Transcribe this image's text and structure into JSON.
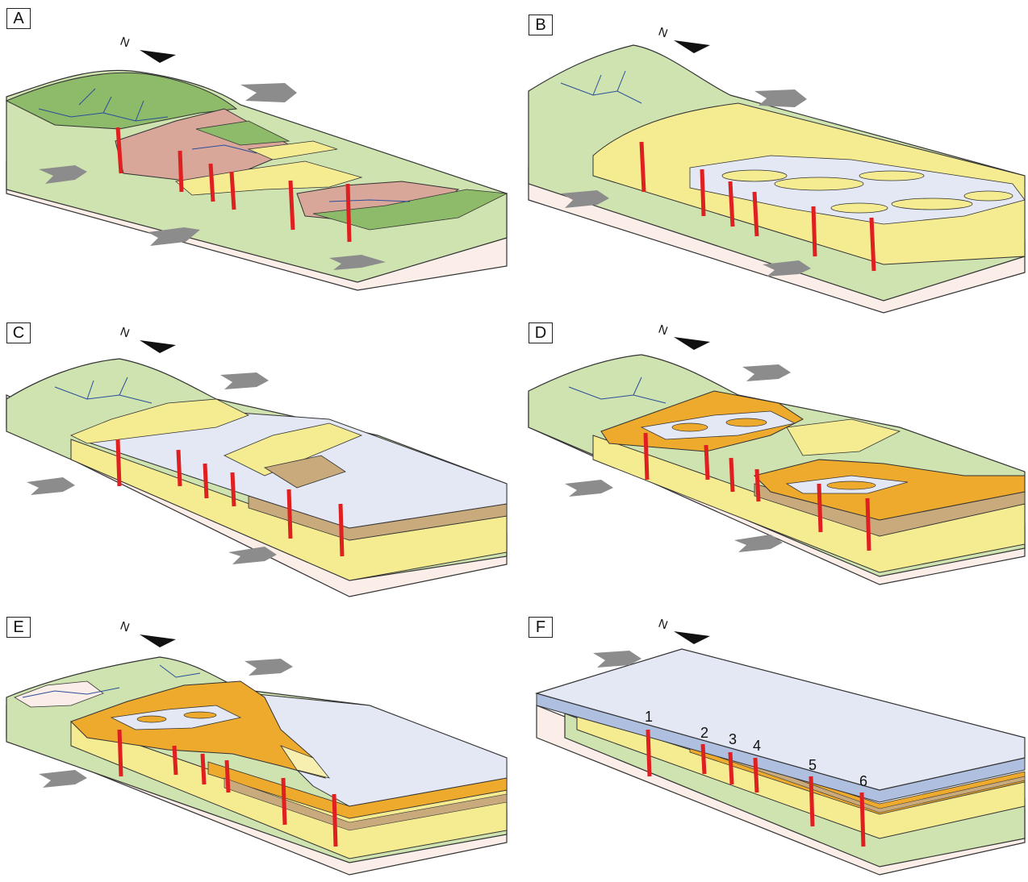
{
  "panels": [
    {
      "label": "A"
    },
    {
      "label": "B"
    },
    {
      "label": "C"
    },
    {
      "label": "D"
    },
    {
      "label": "E"
    },
    {
      "label": "F"
    }
  ],
  "well_labels": [
    "1",
    "2",
    "3",
    "4",
    "5",
    "6"
  ],
  "north_arrow_icon": "north-arrow-icon",
  "colors": {
    "basement_pink": "#fbeee8",
    "hill_green": "#cfe3b0",
    "upland_darkgreen": "#8dbb6a",
    "pink_fan": "#d9a79a",
    "sand_yellow": "#f5ec92",
    "deep_orange": "#eeaa2c",
    "mud_brown": "#c8aa7c",
    "water_lightblue": "#e3e8f4",
    "lake_blue": "#aebfdf",
    "fault_red": "#e02020",
    "arrow_gray": "#8c8c8c",
    "drainage_blue": "#2a4d9a"
  }
}
